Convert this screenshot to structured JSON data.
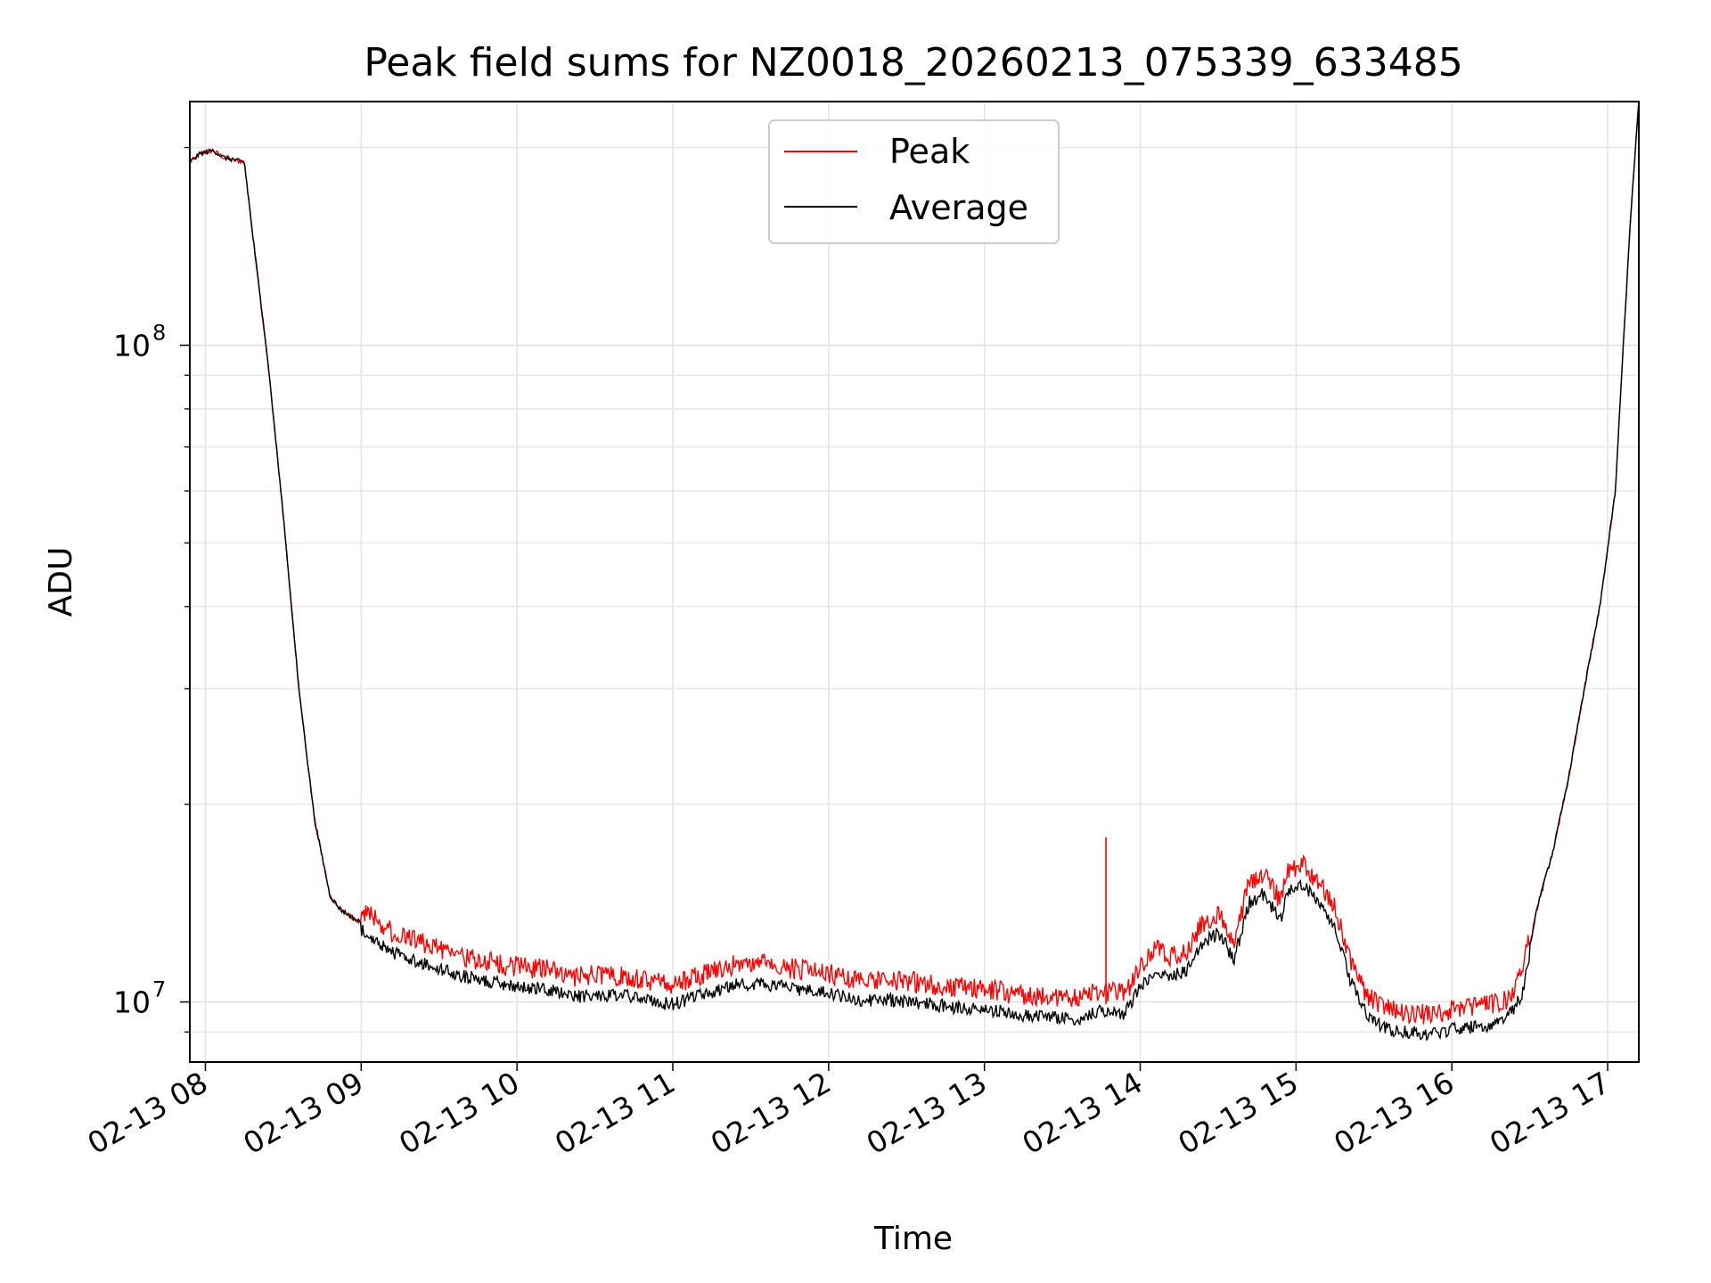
{
  "chart_data": {
    "type": "line",
    "title": "Peak field sums for NZ0018_20260213_075339_633485",
    "xlabel": "Time",
    "ylabel": "ADU",
    "yscale": "log",
    "ylim": [
      8100000,
      235000000
    ],
    "xlim_hours": [
      7.9,
      17.2
    ],
    "x_unit": "hours (02-13)",
    "grid": true,
    "legend_position": "upper center",
    "x_ticks": [
      {
        "hour": 8,
        "label": "02-13 08"
      },
      {
        "hour": 9,
        "label": "02-13 09"
      },
      {
        "hour": 10,
        "label": "02-13 10"
      },
      {
        "hour": 11,
        "label": "02-13 11"
      },
      {
        "hour": 12,
        "label": "02-13 12"
      },
      {
        "hour": 13,
        "label": "02-13 13"
      },
      {
        "hour": 14,
        "label": "02-13 14"
      },
      {
        "hour": 15,
        "label": "02-13 15"
      },
      {
        "hour": 16,
        "label": "02-13 16"
      },
      {
        "hour": 17,
        "label": "02-13 17"
      }
    ],
    "y_major_ticks": [
      {
        "value": 10000000,
        "base": "10",
        "exp": "7"
      },
      {
        "value": 100000000,
        "base": "10",
        "exp": "8"
      }
    ],
    "y_minor_ticks": [
      9000000,
      20000000,
      30000000,
      40000000,
      50000000,
      60000000,
      70000000,
      80000000,
      90000000,
      200000000
    ],
    "series": [
      {
        "name": "Peak",
        "color": "#ff0000",
        "noise_above_average": true,
        "spikes": [
          {
            "hour": 13.78,
            "value": 17800000
          }
        ],
        "points": [
          [
            7.9,
            190000000
          ],
          [
            7.97,
            196000000
          ],
          [
            8.05,
            198000000
          ],
          [
            8.12,
            193000000
          ],
          [
            8.25,
            190000000
          ],
          [
            8.3,
            150000000
          ],
          [
            8.4,
            95000000
          ],
          [
            8.5,
            55000000
          ],
          [
            8.6,
            30000000
          ],
          [
            8.7,
            19000000
          ],
          [
            8.8,
            14500000
          ],
          [
            8.87,
            13800000
          ],
          [
            9.0,
            13200000
          ],
          [
            9.1,
            12700000
          ],
          [
            9.2,
            12200000
          ],
          [
            9.4,
            11700000
          ],
          [
            9.6,
            11300000
          ],
          [
            9.8,
            11000000
          ],
          [
            10.0,
            10800000
          ],
          [
            10.2,
            10700000
          ],
          [
            10.35,
            10400000
          ],
          [
            10.5,
            10500000
          ],
          [
            10.7,
            10450000
          ],
          [
            10.9,
            10200000
          ],
          [
            11.0,
            10150000
          ],
          [
            11.2,
            10500000
          ],
          [
            11.4,
            10900000
          ],
          [
            11.6,
            10900000
          ],
          [
            11.8,
            10700000
          ],
          [
            12.0,
            10550000
          ],
          [
            12.2,
            10300000
          ],
          [
            12.4,
            10300000
          ],
          [
            12.6,
            10200000
          ],
          [
            12.8,
            10050000
          ],
          [
            13.0,
            10000000
          ],
          [
            13.2,
            9800000
          ],
          [
            13.4,
            9700000
          ],
          [
            13.6,
            9650000
          ],
          [
            13.75,
            9950000
          ],
          [
            13.9,
            9800000
          ],
          [
            14.0,
            10800000
          ],
          [
            14.1,
            11500000
          ],
          [
            14.2,
            11200000
          ],
          [
            14.3,
            11400000
          ],
          [
            14.4,
            12600000
          ],
          [
            14.5,
            13000000
          ],
          [
            14.55,
            12500000
          ],
          [
            14.6,
            11800000
          ],
          [
            14.7,
            14500000
          ],
          [
            14.8,
            15000000
          ],
          [
            14.85,
            14200000
          ],
          [
            14.9,
            13600000
          ],
          [
            14.95,
            15200000
          ],
          [
            15.05,
            15400000
          ],
          [
            15.15,
            14500000
          ],
          [
            15.25,
            13300000
          ],
          [
            15.35,
            11000000
          ],
          [
            15.45,
            9800000
          ],
          [
            15.55,
            9400000
          ],
          [
            15.65,
            9200000
          ],
          [
            15.75,
            9200000
          ],
          [
            15.85,
            9100000
          ],
          [
            16.0,
            9300000
          ],
          [
            16.2,
            9400000
          ],
          [
            16.35,
            9600000
          ],
          [
            16.45,
            10500000
          ],
          [
            16.55,
            14000000
          ],
          [
            16.65,
            17000000
          ],
          [
            16.75,
            22000000
          ],
          [
            16.85,
            30000000
          ],
          [
            16.95,
            40000000
          ],
          [
            17.05,
            60000000
          ],
          [
            17.1,
            100000000
          ],
          [
            17.15,
            160000000
          ],
          [
            17.2,
            235000000
          ]
        ]
      },
      {
        "name": "Average",
        "color": "#000000",
        "noise_above_average": false,
        "spikes": [],
        "points": [
          [
            7.9,
            190000000
          ],
          [
            7.97,
            196000000
          ],
          [
            8.05,
            198000000
          ],
          [
            8.12,
            193000000
          ],
          [
            8.25,
            190000000
          ],
          [
            8.3,
            150000000
          ],
          [
            8.4,
            95000000
          ],
          [
            8.5,
            55000000
          ],
          [
            8.6,
            30000000
          ],
          [
            8.7,
            19000000
          ],
          [
            8.8,
            14500000
          ],
          [
            8.87,
            13800000
          ],
          [
            9.0,
            13200000
          ],
          [
            9.1,
            12700000
          ],
          [
            9.2,
            12200000
          ],
          [
            9.4,
            11700000
          ],
          [
            9.6,
            11300000
          ],
          [
            9.8,
            11000000
          ],
          [
            10.0,
            10800000
          ],
          [
            10.2,
            10700000
          ],
          [
            10.35,
            10400000
          ],
          [
            10.5,
            10500000
          ],
          [
            10.7,
            10450000
          ],
          [
            10.9,
            10200000
          ],
          [
            11.0,
            10150000
          ],
          [
            11.2,
            10500000
          ],
          [
            11.4,
            10900000
          ],
          [
            11.6,
            10900000
          ],
          [
            11.8,
            10700000
          ],
          [
            12.0,
            10550000
          ],
          [
            12.2,
            10300000
          ],
          [
            12.4,
            10300000
          ],
          [
            12.6,
            10200000
          ],
          [
            12.8,
            10050000
          ],
          [
            13.0,
            10000000
          ],
          [
            13.2,
            9800000
          ],
          [
            13.4,
            9700000
          ],
          [
            13.6,
            9650000
          ],
          [
            13.75,
            9950000
          ],
          [
            13.9,
            9800000
          ],
          [
            14.0,
            10800000
          ],
          [
            14.1,
            11500000
          ],
          [
            14.2,
            11200000
          ],
          [
            14.3,
            11400000
          ],
          [
            14.4,
            12600000
          ],
          [
            14.5,
            13000000
          ],
          [
            14.55,
            12500000
          ],
          [
            14.6,
            11800000
          ],
          [
            14.7,
            14500000
          ],
          [
            14.8,
            15000000
          ],
          [
            14.85,
            14200000
          ],
          [
            14.9,
            13600000
          ],
          [
            14.95,
            15200000
          ],
          [
            15.05,
            15400000
          ],
          [
            15.15,
            14500000
          ],
          [
            15.25,
            13300000
          ],
          [
            15.35,
            11000000
          ],
          [
            15.45,
            9800000
          ],
          [
            15.55,
            9400000
          ],
          [
            15.65,
            9200000
          ],
          [
            15.75,
            9200000
          ],
          [
            15.85,
            9100000
          ],
          [
            16.0,
            9300000
          ],
          [
            16.2,
            9400000
          ],
          [
            16.35,
            9600000
          ],
          [
            16.45,
            10500000
          ],
          [
            16.55,
            14000000
          ],
          [
            16.65,
            17000000
          ],
          [
            16.75,
            22000000
          ],
          [
            16.85,
            30000000
          ],
          [
            16.95,
            40000000
          ],
          [
            17.05,
            60000000
          ],
          [
            17.1,
            100000000
          ],
          [
            17.15,
            160000000
          ],
          [
            17.2,
            235000000
          ]
        ]
      }
    ]
  }
}
